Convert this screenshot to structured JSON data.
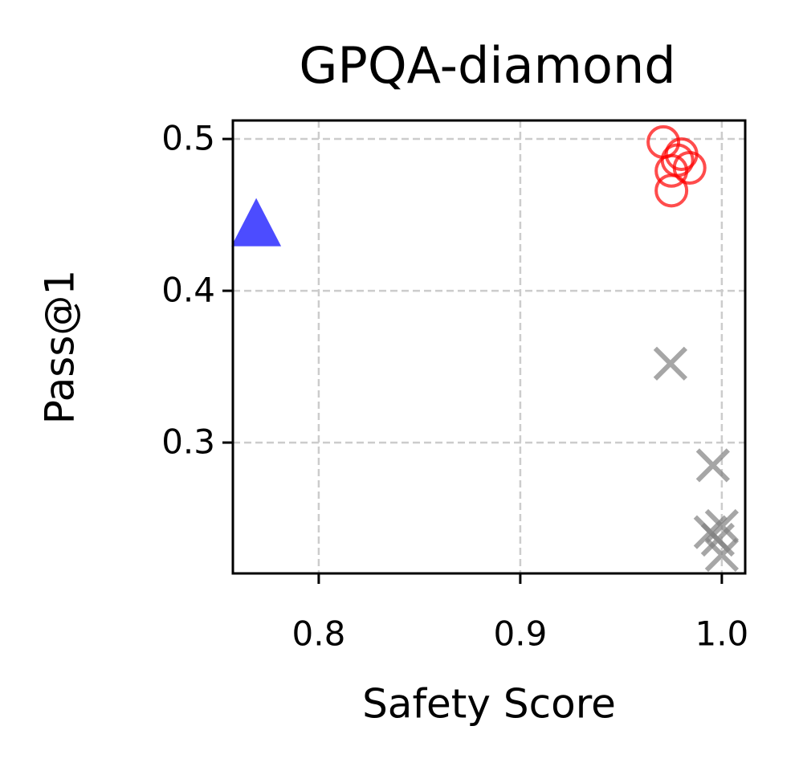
{
  "chart_data": {
    "type": "scatter",
    "title": "GPQA-diamond",
    "xlabel": "Safety Score",
    "ylabel": "Pass@1",
    "xlim": [
      0.7574,
      1.0116
    ],
    "ylim": [
      0.2138,
      0.5122
    ],
    "xticks": [
      0.8,
      0.9,
      {
        "value": 1.0,
        "label": "1.0"
      }
    ],
    "yticks": [
      0.3,
      0.4,
      0.5
    ],
    "grid": true,
    "series": [
      {
        "marker": "triangle",
        "color": "#0000ff",
        "x": [
          0.769
        ],
        "values": [
          0.442
        ]
      },
      {
        "marker": "circle",
        "color": "#ff0000",
        "x": [
          0.971,
          0.98,
          0.984,
          0.975,
          0.975,
          0.978
        ],
        "values": [
          0.498,
          0.49,
          0.481,
          0.479,
          0.466,
          0.486
        ]
      },
      {
        "marker": "x",
        "color": "#808080",
        "x": [
          0.9745,
          0.9956,
          0.9944,
          1.0,
          1.0,
          0.998
        ],
        "values": [
          0.352,
          0.285,
          0.241,
          0.245,
          0.226,
          0.236
        ]
      }
    ]
  }
}
